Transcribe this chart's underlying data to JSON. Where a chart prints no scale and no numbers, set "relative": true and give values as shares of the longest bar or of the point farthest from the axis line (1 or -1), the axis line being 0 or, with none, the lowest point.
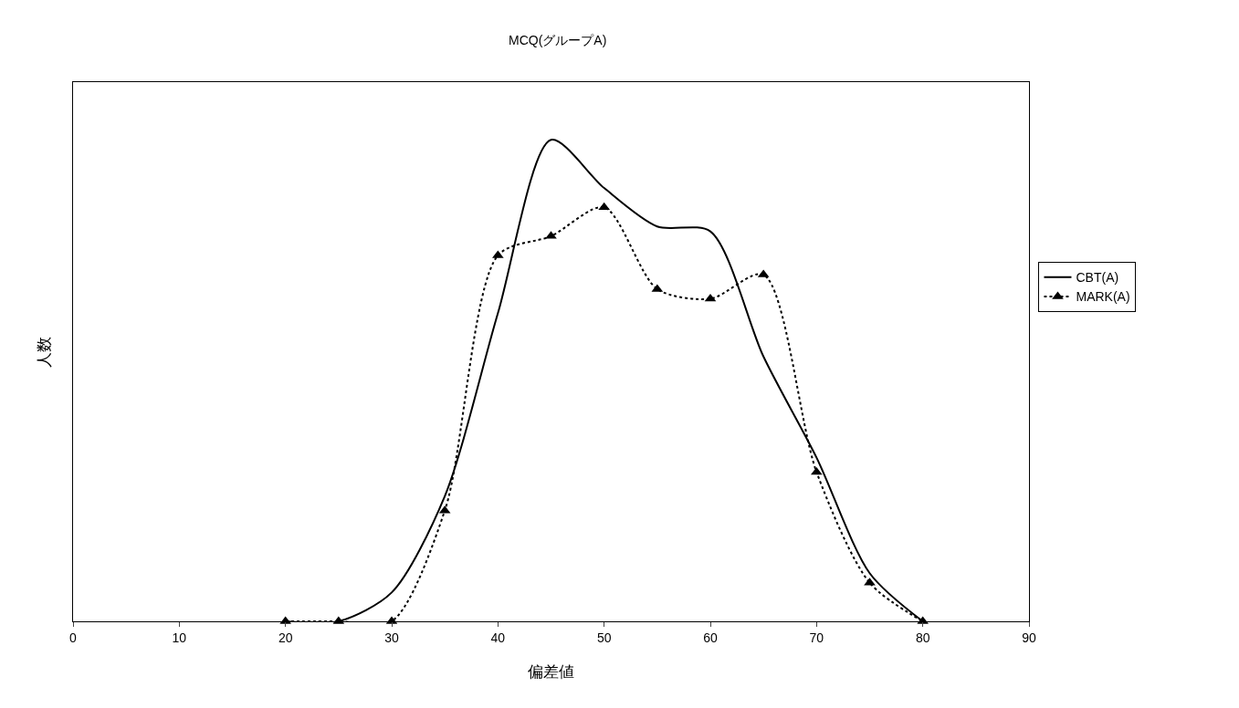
{
  "chart_data": {
    "type": "line",
    "title": "MCQ(グループA)",
    "xlabel": "偏差値",
    "ylabel": "人数",
    "relative": true,
    "x": [
      20,
      25,
      30,
      35,
      40,
      45,
      50,
      55,
      60,
      65,
      70,
      75,
      80
    ],
    "xlim": [
      0,
      90
    ],
    "xticks": [
      0,
      10,
      20,
      30,
      40,
      50,
      60,
      70,
      80,
      90
    ],
    "grid": false,
    "legend": "right",
    "series": [
      {
        "name": "CBT(A)",
        "color": "#000000",
        "line_style": "solid",
        "marker": "none",
        "values": [
          0,
          0,
          0.06,
          0.26,
          0.64,
          1,
          0.9,
          0.82,
          0.81,
          0.55,
          0.34,
          0.1,
          0
        ]
      },
      {
        "name": "MARK(A)",
        "color": "#000000",
        "line_style": "dotted",
        "marker": "triangle",
        "values": [
          0,
          0,
          0,
          0.23,
          0.76,
          0.8,
          0.86,
          0.69,
          0.67,
          0.72,
          0.31,
          0.08,
          0
        ]
      }
    ]
  }
}
